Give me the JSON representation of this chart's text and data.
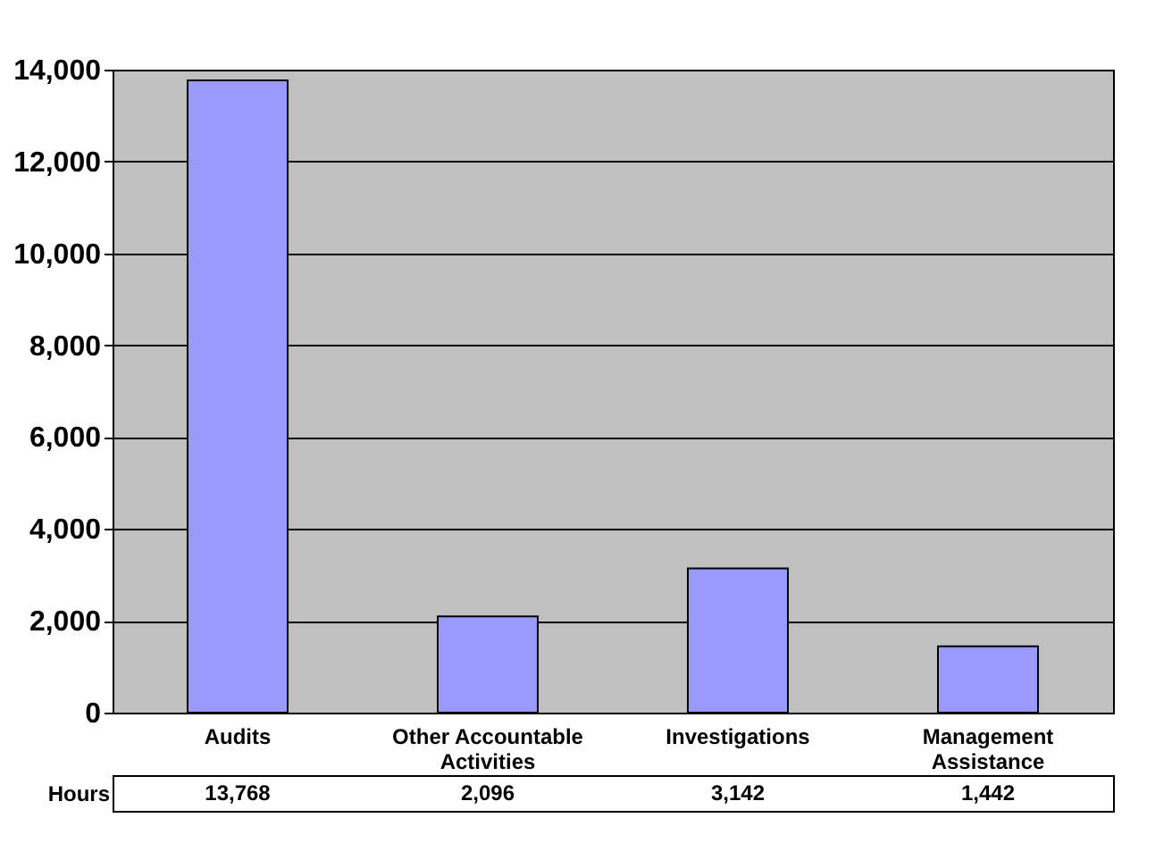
{
  "chart_data": {
    "type": "bar",
    "categories": [
      "Audits",
      "Other Accountable Activities",
      "Investigations",
      "Management Assistance"
    ],
    "series": [
      {
        "name": "Hours",
        "color": "#9999ff",
        "values": [
          13768,
          2096,
          3142,
          1442
        ],
        "value_labels": [
          "13,768",
          "2,096",
          "3,142",
          "1,442"
        ]
      }
    ],
    "ylim": [
      0,
      14000
    ],
    "yticks": [
      {
        "value": 0,
        "label": "0"
      },
      {
        "value": 2000,
        "label": "2,000"
      },
      {
        "value": 4000,
        "label": "4,000"
      },
      {
        "value": 6000,
        "label": "6,000"
      },
      {
        "value": 8000,
        "label": "8,000"
      },
      {
        "value": 10000,
        "label": "10,000"
      },
      {
        "value": 12000,
        "label": "12,000"
      },
      {
        "value": 14000,
        "label": "14,000"
      }
    ],
    "grid": "y",
    "legend": false
  }
}
